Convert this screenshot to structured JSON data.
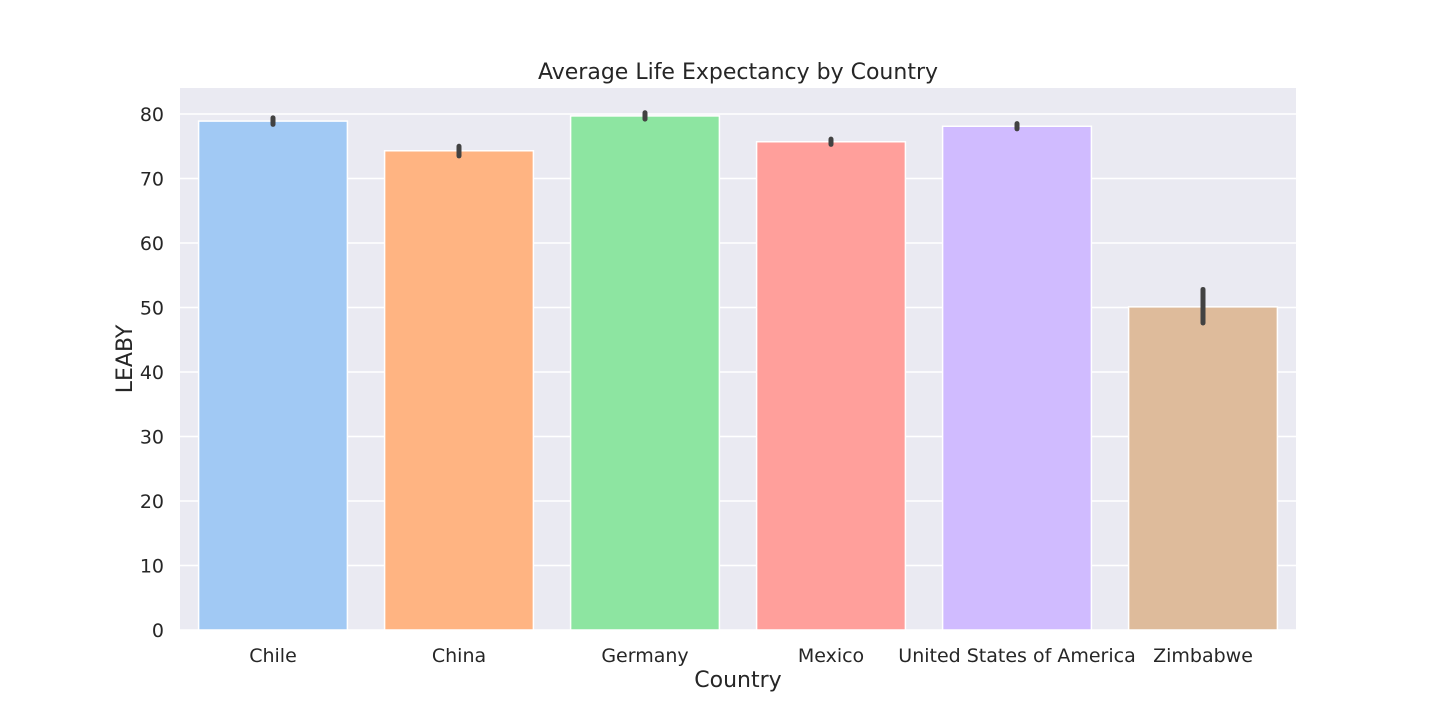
{
  "chart_data": {
    "type": "bar",
    "title": "Average Life Expectancy by Country",
    "xlabel": "Country",
    "ylabel": "LEABY",
    "categories": [
      "Chile",
      "China",
      "Germany",
      "Mexico",
      "United States of America",
      "Zimbabwe"
    ],
    "values": [
      78.9,
      74.3,
      79.7,
      75.7,
      78.1,
      50.1
    ],
    "error_bars": [
      [
        78.4,
        79.4
      ],
      [
        73.5,
        75.0
      ],
      [
        79.2,
        80.2
      ],
      [
        75.3,
        76.1
      ],
      [
        77.7,
        78.5
      ],
      [
        47.6,
        52.8
      ]
    ],
    "ylim": [
      0,
      84
    ],
    "yticks": [
      0,
      10,
      20,
      30,
      40,
      50,
      60,
      70,
      80
    ],
    "grid": true,
    "colors": [
      "#a1c9f4",
      "#ffb482",
      "#8de5a1",
      "#ff9f9b",
      "#d0bbff",
      "#debb9b"
    ],
    "background": "#eaeaf2",
    "error_color": "#424242"
  }
}
